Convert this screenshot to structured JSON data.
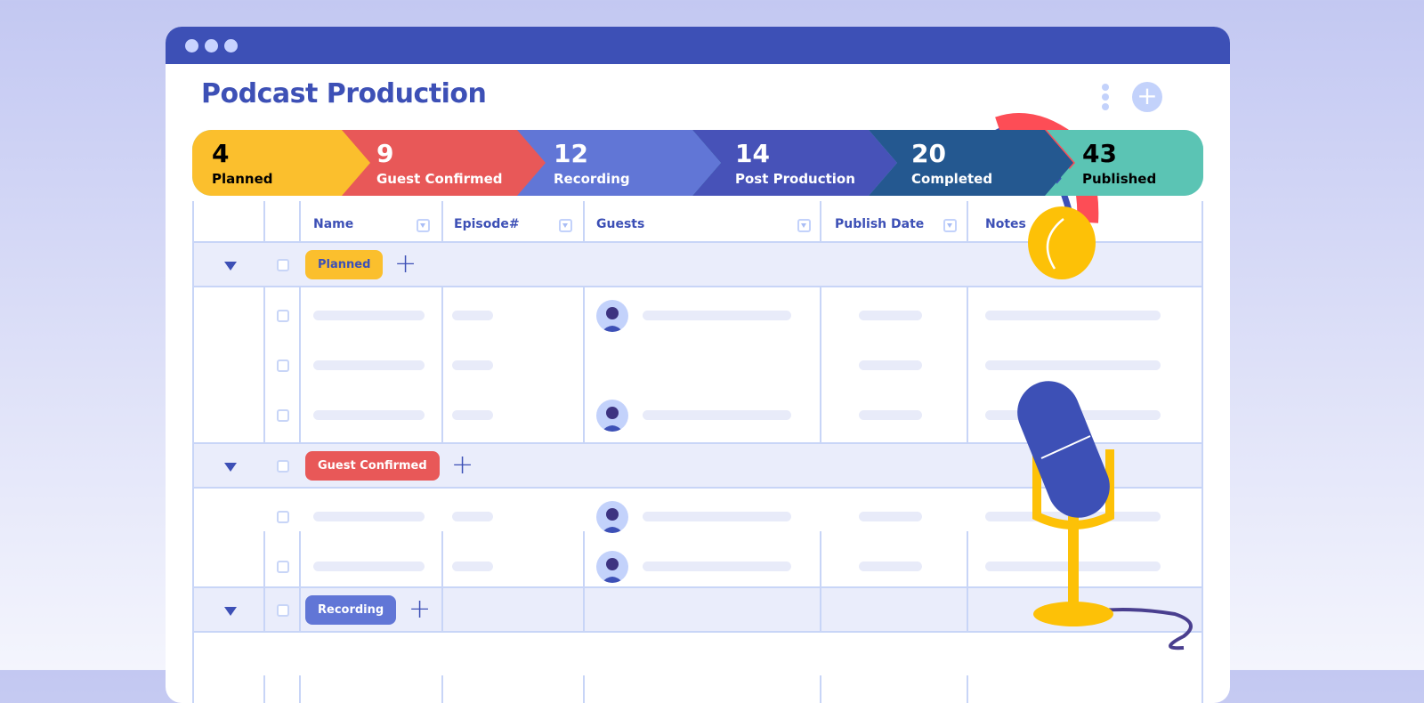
{
  "app": {
    "title": "Podcast Production"
  },
  "stages": [
    {
      "count": "4",
      "label": "Planned",
      "color": "#fbbf2d",
      "text": "#000000"
    },
    {
      "count": "9",
      "label": "Guest Confirmed",
      "color": "#e85858",
      "text": "#ffffff"
    },
    {
      "count": "12",
      "label": "Recording",
      "color": "#6176d6",
      "text": "#ffffff"
    },
    {
      "count": "14",
      "label": "Post Production",
      "color": "#4752b8",
      "text": "#ffffff"
    },
    {
      "count": "20",
      "label": "Completed",
      "color": "#245890",
      "text": "#ffffff"
    },
    {
      "count": "43",
      "label": "Published",
      "color": "#5bc4b4",
      "text": "#000000"
    }
  ],
  "columns": [
    "Name",
    "Episode#",
    "Guests",
    "Publish Date",
    "Notes"
  ],
  "groups": [
    {
      "label": "Planned",
      "color": "#fbbf2d",
      "rows": [
        {
          "guest": true
        },
        {
          "guest": false
        },
        {
          "guest": true
        }
      ]
    },
    {
      "label": "Guest Confirmed",
      "color": "#e85858",
      "rows": [
        {
          "guest": true
        },
        {
          "guest": true
        }
      ]
    },
    {
      "label": "Recording",
      "color": "#6176d6",
      "rows": []
    }
  ],
  "icons": {
    "more": "kebab-icon",
    "add": "plus-icon",
    "illustration": [
      "headphones",
      "microphone"
    ]
  }
}
